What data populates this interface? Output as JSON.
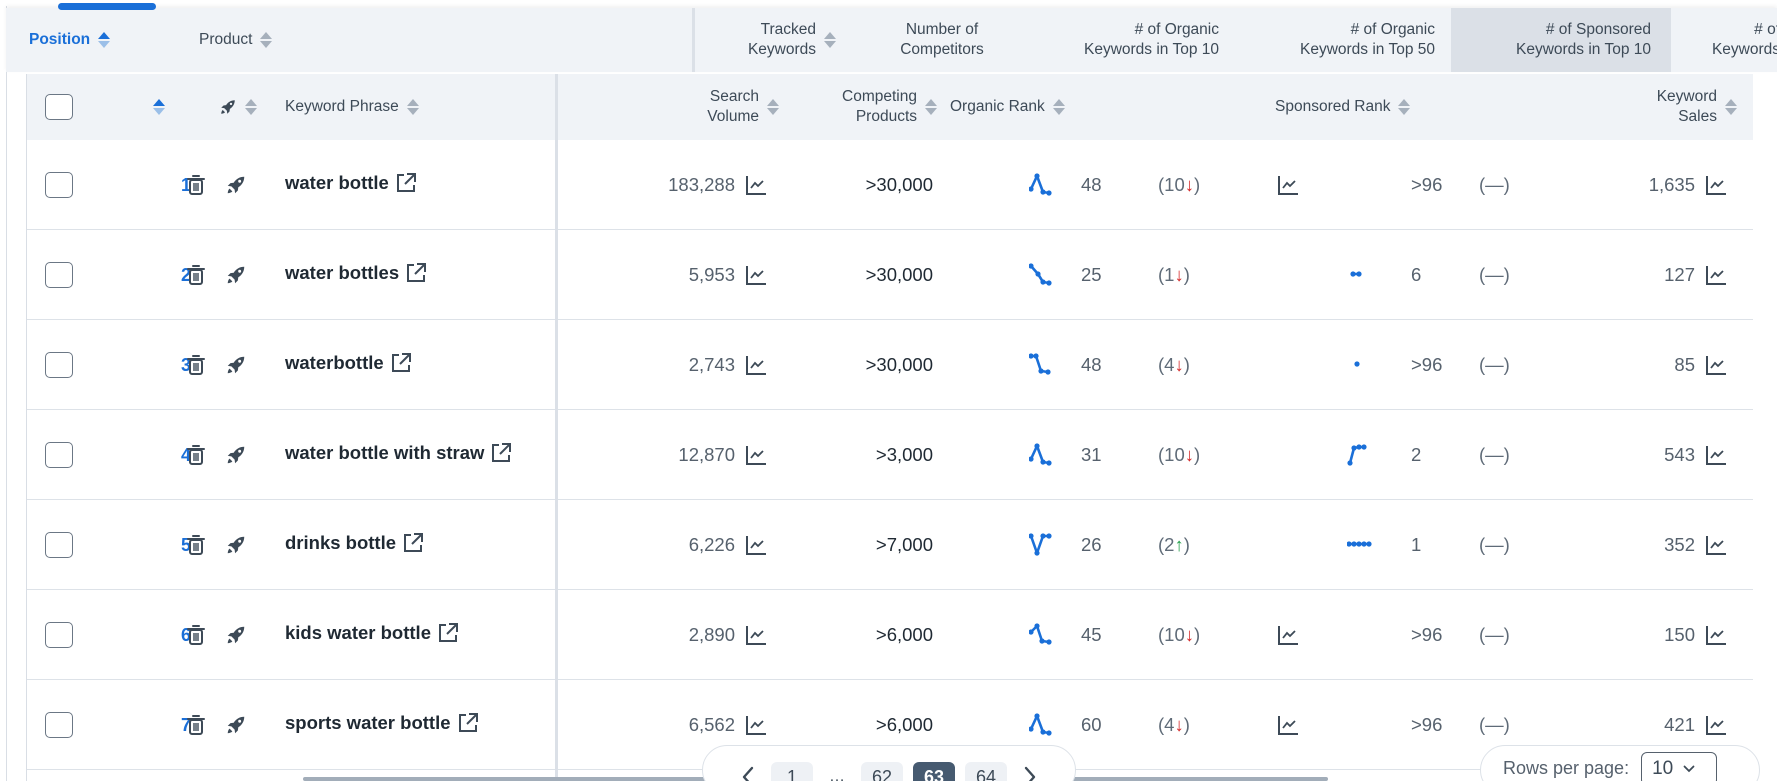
{
  "top_tab_indicator_color": "#1a6fd8",
  "product_header": {
    "columns": [
      {
        "label": "Position",
        "sortable": true,
        "active": true
      },
      {
        "label": "Product",
        "sortable": true
      },
      {
        "label_line1": "Tracked",
        "label_line2": "Keywords",
        "sortable": true
      },
      {
        "label_line1": "Number of",
        "label_line2": "Competitors"
      },
      {
        "label_line1": "# of Organic",
        "label_line2": "Keywords in Top 10"
      },
      {
        "label_line1": "# of Organic",
        "label_line2": "Keywords in Top 50"
      },
      {
        "label_line1": "# of Sponsored",
        "label_line2": "Keywords in Top 10",
        "highlighted": true
      },
      {
        "label_line1": "# of",
        "label_line2": "Keywords"
      }
    ]
  },
  "keyword_table": {
    "headers": {
      "select_all": "",
      "keyword_phrase": "Keyword Phrase",
      "search_volume_line1": "Search",
      "search_volume_line2": "Volume",
      "competing_line1": "Competing",
      "competing_line2": "Products",
      "organic_rank": "Organic Rank",
      "sponsored_rank": "Sponsored Rank",
      "keyword_sales_line1": "Keyword",
      "keyword_sales_line2": "Sales"
    },
    "rows": [
      {
        "position": "1",
        "keyword": "water bottle",
        "search_volume": "183,288",
        "competing": ">30,000",
        "organic_spark": "peak",
        "organic_rank": "48",
        "organic_change": "10",
        "organic_dir": "down",
        "sponsored_spark": "chart-icon",
        "sponsored_rank": ">96",
        "sponsored_change": "(—)",
        "keyword_sales": "1,635"
      },
      {
        "position": "2",
        "keyword": "water bottles",
        "search_volume": "5,953",
        "competing": ">30,000",
        "organic_spark": "descend",
        "organic_rank": "25",
        "organic_change": "1",
        "organic_dir": "down",
        "sponsored_spark": "pair",
        "sponsored_rank": "6",
        "sponsored_change": "(—)",
        "keyword_sales": "127"
      },
      {
        "position": "3",
        "keyword": "waterbottle",
        "search_volume": "2,743",
        "competing": ">30,000",
        "organic_spark": "hook-down",
        "organic_rank": "48",
        "organic_change": "4",
        "organic_dir": "down",
        "sponsored_spark": "dot",
        "sponsored_rank": ">96",
        "sponsored_change": "(—)",
        "keyword_sales": "85"
      },
      {
        "position": "4",
        "keyword": "water bottle with straw",
        "search_volume": "12,870",
        "competing": ">3,000",
        "organic_spark": "peak",
        "organic_rank": "31",
        "organic_change": "10",
        "organic_dir": "down",
        "sponsored_spark": "rise-flat",
        "sponsored_rank": "2",
        "sponsored_change": "(—)",
        "keyword_sales": "543"
      },
      {
        "position": "5",
        "keyword": "drinks bottle",
        "search_volume": "6,226",
        "competing": ">7,000",
        "organic_spark": "valley",
        "organic_rank": "26",
        "organic_change": "2",
        "organic_dir": "up",
        "sponsored_spark": "flat",
        "sponsored_rank": "1",
        "sponsored_change": "(—)",
        "keyword_sales": "352"
      },
      {
        "position": "6",
        "keyword": "kids water bottle",
        "search_volume": "2,890",
        "competing": ">6,000",
        "organic_spark": "small-peak",
        "organic_rank": "45",
        "organic_change": "10",
        "organic_dir": "down",
        "sponsored_spark": "chart-icon",
        "sponsored_rank": ">96",
        "sponsored_change": "(—)",
        "keyword_sales": "150"
      },
      {
        "position": "7",
        "keyword": "sports water bottle",
        "search_volume": "6,562",
        "competing": ">6,000",
        "organic_spark": "peak",
        "organic_rank": "60",
        "organic_change": "4",
        "organic_dir": "down",
        "sponsored_spark": "chart-icon",
        "sponsored_rank": ">96",
        "sponsored_change": "(—)",
        "keyword_sales": "421"
      }
    ]
  },
  "pagination": {
    "prev_icon": "chevron-left-icon",
    "pages": [
      "1",
      "…",
      "62",
      "63",
      "64"
    ],
    "current": "63",
    "next_icon": "chevron-right-icon"
  },
  "rows_per_page": {
    "label": "Rows per page:",
    "value": "10"
  },
  "icons": {
    "delete": "trash-icon",
    "boost": "rocket-icon",
    "external_link": "external-link-icon",
    "trend_chart": "line-chart-icon"
  },
  "colors": {
    "accent": "#1a6fd8",
    "rank_down": "#d62b2b",
    "rank_up": "#23a04b",
    "header_bg": "#f0f3f7",
    "highlight_col_bg": "#dbe0e7",
    "current_page_bg": "#465a70"
  }
}
